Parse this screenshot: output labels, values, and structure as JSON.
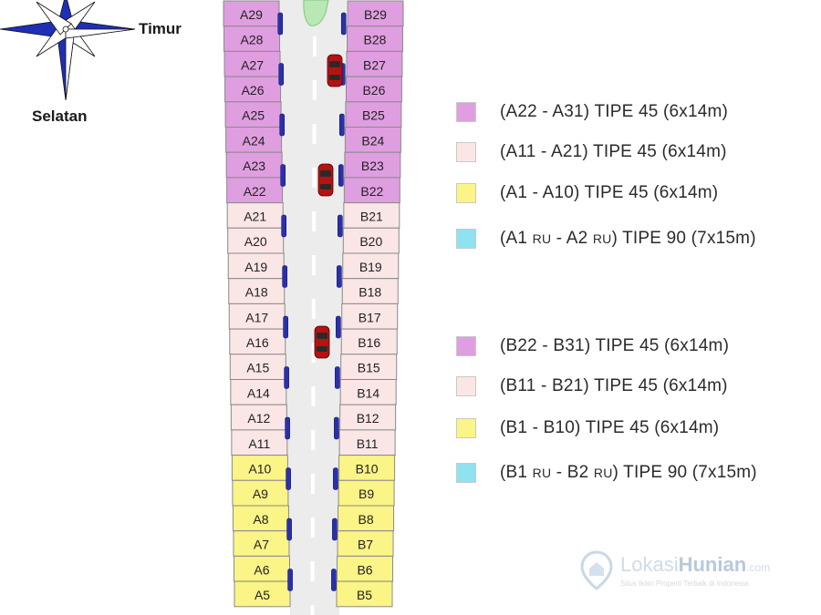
{
  "compass": {
    "east_label": "Timur",
    "south_label": "Selatan",
    "arrow_color": "#1f2fb5"
  },
  "road_marking_text": "",
  "colors": {
    "pink": "#df9ee0",
    "light_pink": "#fbe6e6",
    "yellow": "#fbf486",
    "cyan": "#8fe2f0",
    "road": "#ececec",
    "post": "#2a31a8",
    "car": "#b51212"
  },
  "lots": {
    "left": [
      {
        "label": "A29",
        "type": "pink"
      },
      {
        "label": "A28",
        "type": "pink"
      },
      {
        "label": "A27",
        "type": "pink"
      },
      {
        "label": "A26",
        "type": "pink"
      },
      {
        "label": "A25",
        "type": "pink"
      },
      {
        "label": "A24",
        "type": "pink"
      },
      {
        "label": "A23",
        "type": "pink"
      },
      {
        "label": "A22",
        "type": "pink"
      },
      {
        "label": "A21",
        "type": "light_pink"
      },
      {
        "label": "A20",
        "type": "light_pink"
      },
      {
        "label": "A19",
        "type": "light_pink"
      },
      {
        "label": "A18",
        "type": "light_pink"
      },
      {
        "label": "A17",
        "type": "light_pink"
      },
      {
        "label": "A16",
        "type": "light_pink"
      },
      {
        "label": "A15",
        "type": "light_pink"
      },
      {
        "label": "A14",
        "type": "light_pink"
      },
      {
        "label": "A12",
        "type": "light_pink"
      },
      {
        "label": "A11",
        "type": "light_pink"
      },
      {
        "label": "A10",
        "type": "yellow"
      },
      {
        "label": "A9",
        "type": "yellow"
      },
      {
        "label": "A8",
        "type": "yellow"
      },
      {
        "label": "A7",
        "type": "yellow"
      },
      {
        "label": "A6",
        "type": "yellow"
      },
      {
        "label": "A5",
        "type": "yellow"
      }
    ],
    "right": [
      {
        "label": "B29",
        "type": "pink"
      },
      {
        "label": "B28",
        "type": "pink"
      },
      {
        "label": "B27",
        "type": "pink"
      },
      {
        "label": "B26",
        "type": "pink"
      },
      {
        "label": "B25",
        "type": "pink"
      },
      {
        "label": "B24",
        "type": "pink"
      },
      {
        "label": "B23",
        "type": "pink"
      },
      {
        "label": "B22",
        "type": "pink"
      },
      {
        "label": "B21",
        "type": "light_pink"
      },
      {
        "label": "B20",
        "type": "light_pink"
      },
      {
        "label": "B19",
        "type": "light_pink"
      },
      {
        "label": "B18",
        "type": "light_pink"
      },
      {
        "label": "B17",
        "type": "light_pink"
      },
      {
        "label": "B16",
        "type": "light_pink"
      },
      {
        "label": "B15",
        "type": "light_pink"
      },
      {
        "label": "B14",
        "type": "light_pink"
      },
      {
        "label": "B12",
        "type": "light_pink"
      },
      {
        "label": "B11",
        "type": "light_pink"
      },
      {
        "label": "B10",
        "type": "yellow"
      },
      {
        "label": "B9",
        "type": "yellow"
      },
      {
        "label": "B8",
        "type": "yellow"
      },
      {
        "label": "B7",
        "type": "yellow"
      },
      {
        "label": "B6",
        "type": "yellow"
      },
      {
        "label": "B5",
        "type": "yellow"
      }
    ]
  },
  "legend": [
    {
      "color": "#df9ee0",
      "pre": "(A22 - A31) TIPE 45 (6x14m)",
      "ru1": "",
      "mid": "",
      "ru2": "",
      "post": ""
    },
    {
      "color": "#fbe6e6",
      "pre": "(A11 - A21) TIPE 45 (6x14m)",
      "ru1": "",
      "mid": "",
      "ru2": "",
      "post": ""
    },
    {
      "color": "#fbf486",
      "pre": "(A1 - A10) TIPE 45 (6x14m)",
      "ru1": "",
      "mid": "",
      "ru2": "",
      "post": ""
    },
    {
      "color": "#8fe2f0",
      "pre": "(A1 ",
      "ru1": "RU",
      "mid": " - A2 ",
      "ru2": "RU",
      "post": ") TIPE 90 (7x15m)"
    },
    {
      "color": "#df9ee0",
      "pre": "(B22 - B31) TIPE 45 (6x14m)",
      "ru1": "",
      "mid": "",
      "ru2": "",
      "post": ""
    },
    {
      "color": "#fbe6e6",
      "pre": "(B11 - B21) TIPE 45 (6x14m)",
      "ru1": "",
      "mid": "",
      "ru2": "",
      "post": ""
    },
    {
      "color": "#fbf486",
      "pre": "(B1 - B10) TIPE 45 (6x14m)",
      "ru1": "",
      "mid": "",
      "ru2": "",
      "post": ""
    },
    {
      "color": "#8fe2f0",
      "pre": "(B1 ",
      "ru1": "RU",
      "mid": " - B2 ",
      "ru2": "RU",
      "post": ") TIPE 90 (7x15m)"
    }
  ],
  "watermark": {
    "brand_light": "Lokasi",
    "brand_bold": "Hunian",
    "domain": ".com",
    "tagline": "Situs Iklan Properti Terbaik di Indonesia"
  }
}
